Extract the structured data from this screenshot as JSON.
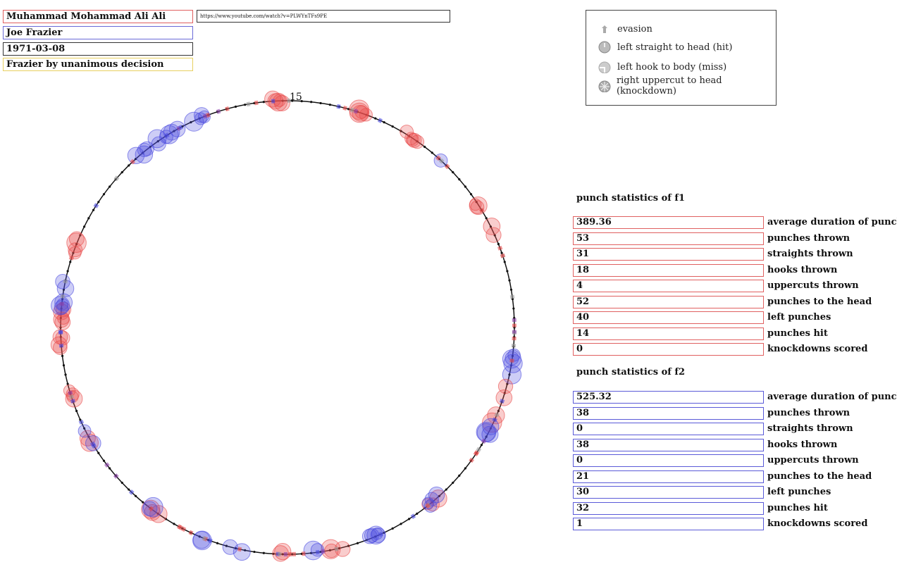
{
  "fight": {
    "fighter1": "Muhammad Mohammad Ali Ali",
    "fighter2": "Joe Frazier",
    "date": "1971-03-08",
    "result": "Frazier by unanimous decision",
    "url": "https://www.youtube.com/watch?v=PLWYnTFs9PE"
  },
  "legend": {
    "items": [
      {
        "label": "evasion",
        "icon": "evasion-icon"
      },
      {
        "label": "left straight to head (hit)",
        "icon": "straight-hit-icon"
      },
      {
        "label": "left hook to body (miss)",
        "icon": "hook-miss-icon"
      },
      {
        "label": "right uppercut to head (knockdown)",
        "icon": "uppercut-knockdown-icon"
      }
    ]
  },
  "ring": {
    "round_label": "15"
  },
  "colors": {
    "fighter1": "#e84a4a",
    "fighter2": "#4a4ae0",
    "evasion": "#999999"
  },
  "stats_f1": {
    "title": "punch statistics of f1",
    "rows": [
      {
        "value": "389.36",
        "label": "average duration of punches"
      },
      {
        "value": "53",
        "label": "punches thrown"
      },
      {
        "value": "31",
        "label": "straights thrown"
      },
      {
        "value": "18",
        "label": "hooks thrown"
      },
      {
        "value": "4",
        "label": "uppercuts thrown"
      },
      {
        "value": "52",
        "label": "punches to the head"
      },
      {
        "value": "40",
        "label": "left punches"
      },
      {
        "value": "14",
        "label": "punches hit"
      },
      {
        "value": "0",
        "label": "knockdowns scored"
      }
    ]
  },
  "stats_f2": {
    "title": "punch statistics of f2",
    "rows": [
      {
        "value": "525.32",
        "label": "average duration of punches"
      },
      {
        "value": "38",
        "label": "punches thrown"
      },
      {
        "value": "0",
        "label": "straights thrown"
      },
      {
        "value": "38",
        "label": "hooks thrown"
      },
      {
        "value": "0",
        "label": "uppercuts thrown"
      },
      {
        "value": "21",
        "label": "punches to the head"
      },
      {
        "value": "30",
        "label": "left punches"
      },
      {
        "value": "32",
        "label": "punches hit"
      },
      {
        "value": "1",
        "label": "knockdowns scored"
      }
    ]
  }
}
